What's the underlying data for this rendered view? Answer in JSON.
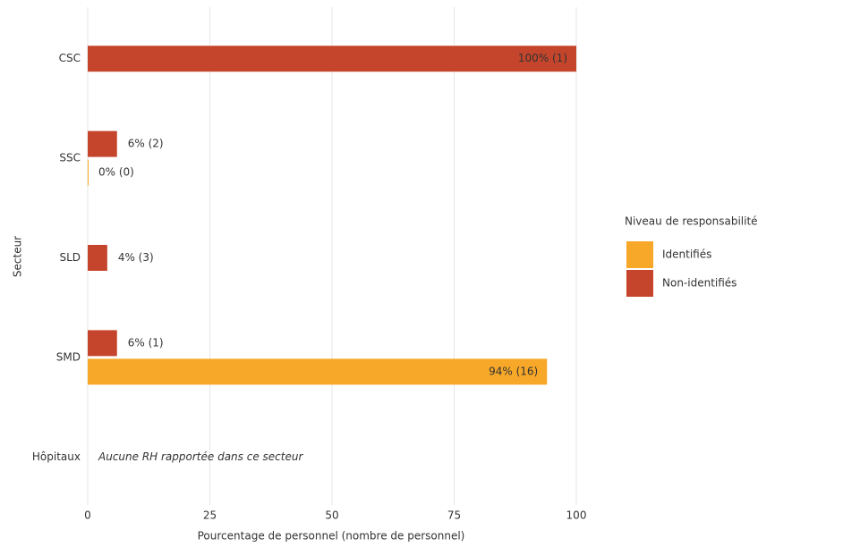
{
  "chart_data": {
    "type": "bar",
    "orientation": "horizontal",
    "categories": [
      "CSC",
      "SSC",
      "SLD",
      "SMD",
      "Hôpitaux"
    ],
    "series": [
      {
        "name": "Non-identifiés",
        "color": "#c4452b",
        "values": [
          100,
          6,
          4,
          6,
          null
        ],
        "value_labels": [
          "100% (1)",
          "6% (2)",
          "4% (3)",
          "6% (1)",
          null
        ]
      },
      {
        "name": "Identifiés",
        "color": "#f8a828",
        "values": [
          null,
          0,
          null,
          94,
          null
        ],
        "value_labels": [
          null,
          "0% (0)",
          null,
          "94% (16)",
          null
        ]
      }
    ],
    "xlim": [
      0,
      100
    ],
    "xticks": [
      0,
      25,
      50,
      75,
      100
    ],
    "grid": true,
    "xlabel": "Pourcentage de personnel (nombre de personnel)",
    "ylabel": "Secteur",
    "legend_title": "Niveau de responsabilité",
    "legend_order": [
      1,
      0
    ],
    "annotation": {
      "category": 4,
      "text": "Aucune RH rapportée dans ce secteur"
    }
  }
}
